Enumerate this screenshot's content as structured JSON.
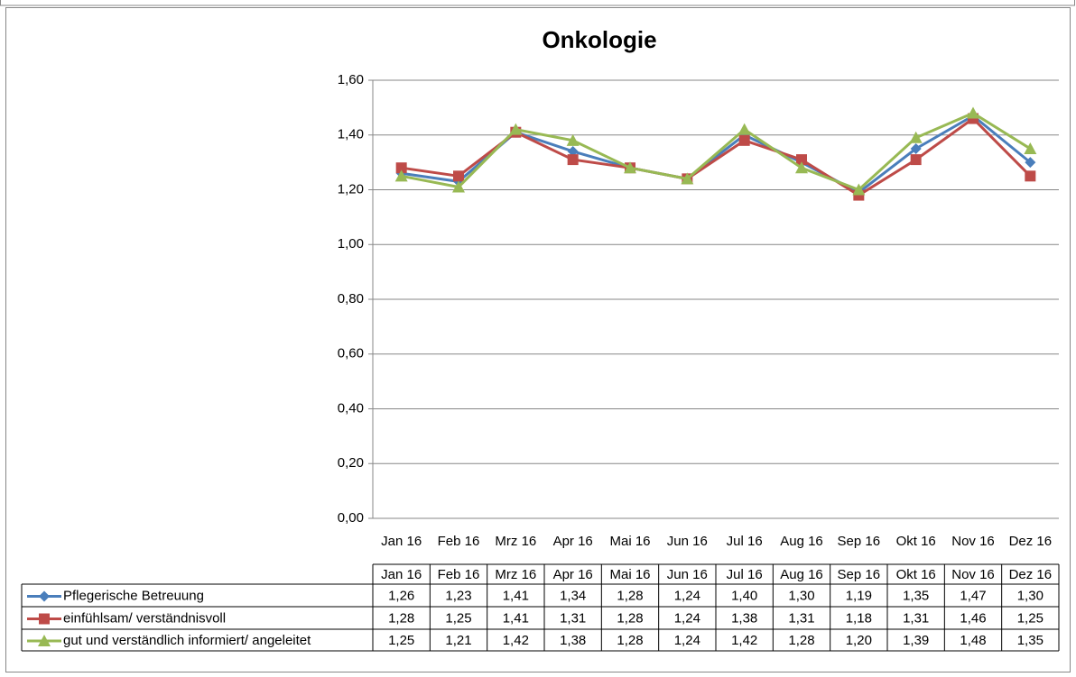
{
  "chart_data": {
    "type": "line",
    "title": "Onkologie",
    "categories": [
      "Jan 16",
      "Feb 16",
      "Mrz 16",
      "Apr 16",
      "Mai 16",
      "Jun 16",
      "Jul 16",
      "Aug 16",
      "Sep 16",
      "Okt 16",
      "Nov 16",
      "Dez 16"
    ],
    "series": [
      {
        "name": "Pflegerische Betreuung",
        "color": "#4a7ebb",
        "marker": "diamond",
        "values": [
          1.26,
          1.23,
          1.41,
          1.34,
          1.28,
          1.24,
          1.4,
          1.3,
          1.19,
          1.35,
          1.47,
          1.3
        ],
        "value_labels": [
          "1,26",
          "1,23",
          "1,41",
          "1,34",
          "1,28",
          "1,24",
          "1,40",
          "1,30",
          "1,19",
          "1,35",
          "1,47",
          "1,30"
        ]
      },
      {
        "name": "einfühlsam/ verständnisvoll",
        "color": "#be4b48",
        "marker": "square",
        "values": [
          1.28,
          1.25,
          1.41,
          1.31,
          1.28,
          1.24,
          1.38,
          1.31,
          1.18,
          1.31,
          1.46,
          1.25
        ],
        "value_labels": [
          "1,28",
          "1,25",
          "1,41",
          "1,31",
          "1,28",
          "1,24",
          "1,38",
          "1,31",
          "1,18",
          "1,31",
          "1,46",
          "1,25"
        ]
      },
      {
        "name": "gut und verständlich informiert/ angeleitet",
        "color": "#98b954",
        "marker": "triangle",
        "values": [
          1.25,
          1.21,
          1.42,
          1.38,
          1.28,
          1.24,
          1.42,
          1.28,
          1.2,
          1.39,
          1.48,
          1.35
        ],
        "value_labels": [
          "1,25",
          "1,21",
          "1,42",
          "1,38",
          "1,28",
          "1,24",
          "1,42",
          "1,28",
          "1,20",
          "1,39",
          "1,48",
          "1,35"
        ]
      }
    ],
    "ylim": [
      0,
      1.6
    ],
    "yticks": [
      {
        "value": 0,
        "label": "0,00"
      },
      {
        "value": 0.2,
        "label": "0,20"
      },
      {
        "value": 0.4,
        "label": "0,40"
      },
      {
        "value": 0.6,
        "label": "0,60"
      },
      {
        "value": 0.8,
        "label": "0,80"
      },
      {
        "value": 1.0,
        "label": "1,00"
      },
      {
        "value": 1.2,
        "label": "1,20"
      },
      {
        "value": 1.4,
        "label": "1,40"
      },
      {
        "value": 1.6,
        "label": "1,60"
      }
    ],
    "grid": true,
    "data_table": true
  }
}
